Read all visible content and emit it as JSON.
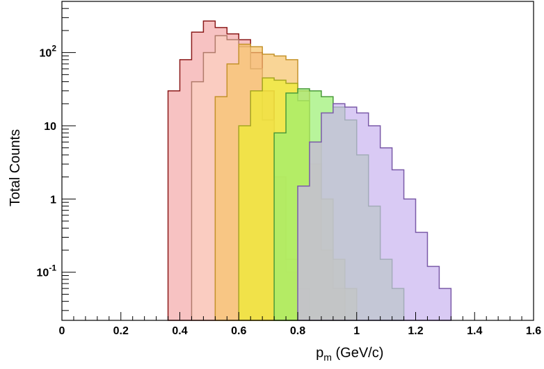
{
  "chart_data": {
    "type": "area",
    "xlabel": "p",
    "xlabel_sub": "m",
    "xlabel_unit": " (GeV/c)",
    "ylabel": "Total Counts",
    "xlim": [
      0,
      1.6
    ],
    "ylim": [
      0.022,
      500
    ],
    "y_scale": "log",
    "grid": false,
    "x_ticks": [
      {
        "v": 0,
        "label": "0"
      },
      {
        "v": 0.2,
        "label": "0.2"
      },
      {
        "v": 0.4,
        "label": "0.4"
      },
      {
        "v": 0.6,
        "label": "0.6"
      },
      {
        "v": 0.8,
        "label": "0.8"
      },
      {
        "v": 1.0,
        "label": "1"
      },
      {
        "v": 1.2,
        "label": "1.2"
      },
      {
        "v": 1.4,
        "label": "1.4"
      },
      {
        "v": 1.6,
        "label": "1.6"
      }
    ],
    "y_ticks": [
      {
        "v": 0.1,
        "base": "10",
        "exp": "-1"
      },
      {
        "v": 1,
        "base": "1",
        "exp": ""
      },
      {
        "v": 10,
        "base": "10",
        "exp": ""
      },
      {
        "v": 100,
        "base": "10",
        "exp": "2"
      }
    ],
    "bin_width": 0.04,
    "series": [
      {
        "x0": 0.36,
        "fill": "#f4a8a8",
        "stroke": "#8b1a1a",
        "values": [
          30,
          80,
          190,
          270,
          220,
          180,
          150,
          100,
          30,
          2,
          0.1
        ]
      },
      {
        "x0": 0.44,
        "fill": "#fbd0c0",
        "stroke": "#b07a6a",
        "values": [
          40,
          100,
          170,
          150,
          120,
          60,
          12,
          2,
          0.15,
          0.06
        ]
      },
      {
        "x0": 0.52,
        "fill": "#f7c36a",
        "stroke": "#c4922a",
        "values": [
          25,
          70,
          130,
          120,
          95,
          90,
          80,
          30,
          3,
          0.2,
          0.06
        ]
      },
      {
        "x0": 0.6,
        "fill": "#eeee30",
        "stroke": "#a6a620",
        "values": [
          10,
          30,
          45,
          42,
          38,
          22,
          6,
          1,
          0.15,
          0.06
        ]
      },
      {
        "x0": 0.72,
        "fill": "#9af070",
        "stroke": "#4a9a3a",
        "values": [
          8,
          28,
          32,
          30,
          25,
          18,
          12,
          4,
          0.8,
          0.15,
          0.06
        ]
      },
      {
        "x0": 0.8,
        "fill": "#c9b4ef",
        "stroke": "#7a5aa8",
        "values": [
          1.5,
          6,
          15,
          20,
          18,
          15,
          10,
          5,
          2.5,
          1,
          0.35,
          0.12,
          0.06
        ]
      }
    ]
  }
}
